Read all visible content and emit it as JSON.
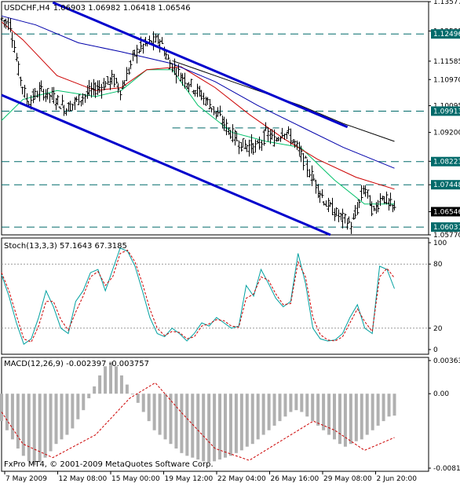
{
  "colors": {
    "background": "#ffffff",
    "frame": "#000000",
    "candle": "#000000",
    "channel": "#0000cc",
    "level": "#006a6a",
    "ma_fast": "#00c06a",
    "ma_mid": "#cc0000",
    "ma_slow1": "#0000aa",
    "ma_slow2": "#000000",
    "stoch_main": "#00a0a0",
    "stoch_signal": "#cc0000",
    "macd_hist": "#b0b0b0",
    "macd_signal": "#cc0000",
    "price_box_bg": "#000000",
    "price_box_text": "#ffffff"
  },
  "header": {
    "symbol": "USDCHF,H4",
    "ohlc": "1.06903 1.06982 1.06418 1.06546"
  },
  "stoch": {
    "label": "Stoch(13,3,3) 57.1643 67.3185"
  },
  "macd": {
    "label": "MACD(12,26,9) -0.002397 -0.003757"
  },
  "copyright": "FxPro MT4, © 2001-2009 MetaQuotes Software Corp.",
  "chart_data": [
    {
      "type": "candlestick",
      "title": "USDCHF,H4",
      "ylim": [
        1.0577,
        1.1358
      ],
      "yticks": [
        "1.13577",
        "1.12595",
        "1.11585",
        "1.10970",
        "1.10095",
        "1.09200",
        "1.08233",
        "1.07448",
        "1.06546",
        "1.05770"
      ],
      "levels": [
        1.12496,
        1.09913,
        1.08223,
        1.07448,
        1.06031
      ],
      "level_labels": [
        "1.12496",
        "1.09913",
        "1.08223",
        "1.07448",
        "1.06031"
      ],
      "current_price": "1.06546",
      "short_level": {
        "price": 1.0935,
        "from": 0.4,
        "to": 0.65
      },
      "channel_upper": [
        [
          0.12,
          1.1355
        ],
        [
          0.81,
          1.0938
        ]
      ],
      "channel_lower": [
        [
          0.0,
          1.1045
        ],
        [
          0.77,
          1.0577
        ]
      ],
      "keypoints": [
        [
          0,
          1.13
        ],
        [
          0.02,
          1.128
        ],
        [
          0.04,
          1.112
        ],
        [
          0.06,
          1.102
        ],
        [
          0.09,
          1.106
        ],
        [
          0.12,
          1.104
        ],
        [
          0.15,
          1.1
        ],
        [
          0.18,
          1.103
        ],
        [
          0.21,
          1.106
        ],
        [
          0.24,
          1.108
        ],
        [
          0.26,
          1.11
        ],
        [
          0.28,
          1.106
        ],
        [
          0.31,
          1.118
        ],
        [
          0.33,
          1.121
        ],
        [
          0.37,
          1.123
        ],
        [
          0.39,
          1.116
        ],
        [
          0.42,
          1.111
        ],
        [
          0.45,
          1.107
        ],
        [
          0.49,
          1.101
        ],
        [
          0.53,
          1.093
        ],
        [
          0.56,
          1.088
        ],
        [
          0.6,
          1.087
        ],
        [
          0.62,
          1.092
        ],
        [
          0.64,
          1.089
        ],
        [
          0.66,
          1.093
        ],
        [
          0.68,
          1.09
        ],
        [
          0.72,
          1.079
        ],
        [
          0.76,
          1.068
        ],
        [
          0.79,
          1.064
        ],
        [
          0.82,
          1.061
        ],
        [
          0.85,
          1.074
        ],
        [
          0.87,
          1.065
        ],
        [
          0.89,
          1.071
        ],
        [
          0.92,
          1.066
        ]
      ],
      "moving_averages": [
        {
          "color": "ma_fast",
          "points": [
            [
              0.0,
              1.096
            ],
            [
              0.05,
              1.103
            ],
            [
              0.13,
              1.106
            ],
            [
              0.22,
              1.104
            ],
            [
              0.28,
              1.106
            ],
            [
              0.34,
              1.113
            ],
            [
              0.4,
              1.113
            ],
            [
              0.46,
              1.101
            ],
            [
              0.54,
              1.092
            ],
            [
              0.62,
              1.089
            ],
            [
              0.7,
              1.087
            ],
            [
              0.78,
              1.076
            ],
            [
              0.85,
              1.068
            ],
            [
              0.92,
              1.068
            ]
          ]
        },
        {
          "color": "ma_mid",
          "points": [
            [
              0.0,
              1.129
            ],
            [
              0.05,
              1.123
            ],
            [
              0.13,
              1.111
            ],
            [
              0.22,
              1.106
            ],
            [
              0.28,
              1.107
            ],
            [
              0.34,
              1.113
            ],
            [
              0.42,
              1.114
            ],
            [
              0.5,
              1.107
            ],
            [
              0.58,
              1.098
            ],
            [
              0.66,
              1.09
            ],
            [
              0.74,
              1.083
            ],
            [
              0.83,
              1.077
            ],
            [
              0.92,
              1.073
            ]
          ]
        },
        {
          "color": "ma_slow1",
          "points": [
            [
              0.0,
              1.131
            ],
            [
              0.08,
              1.128
            ],
            [
              0.18,
              1.122
            ],
            [
              0.28,
              1.119
            ],
            [
              0.4,
              1.115
            ],
            [
              0.5,
              1.109
            ],
            [
              0.6,
              1.101
            ],
            [
              0.7,
              1.094
            ],
            [
              0.8,
              1.087
            ],
            [
              0.92,
              1.08
            ]
          ]
        },
        {
          "color": "ma_slow2",
          "points": [
            [
              0.4,
              1.116
            ],
            [
              0.5,
              1.111
            ],
            [
              0.6,
              1.106
            ],
            [
              0.7,
              1.101
            ],
            [
              0.8,
              1.095
            ],
            [
              0.92,
              1.089
            ]
          ]
        }
      ]
    },
    {
      "type": "line",
      "title": "Stoch(13,3,3) 57.1643 67.3185",
      "ylim": [
        0,
        100
      ],
      "yticks": [
        "100",
        "80",
        "20",
        "0"
      ],
      "levels": [
        80,
        20
      ],
      "series": [
        {
          "color": "stoch_main",
          "values": [
            70,
            50,
            25,
            5,
            10,
            30,
            55,
            40,
            20,
            15,
            45,
            55,
            72,
            75,
            55,
            75,
            95,
            92,
            78,
            55,
            30,
            15,
            12,
            20,
            15,
            8,
            15,
            25,
            22,
            30,
            25,
            20,
            22,
            60,
            50,
            75,
            62,
            48,
            40,
            45,
            90,
            62,
            20,
            10,
            8,
            9,
            15,
            30,
            42,
            20,
            15,
            78,
            75,
            57
          ]
        },
        {
          "color": "stoch_signal",
          "values": [
            72,
            55,
            32,
            10,
            7,
            22,
            45,
            45,
            28,
            18,
            35,
            50,
            68,
            73,
            60,
            68,
            90,
            93,
            82,
            62,
            38,
            20,
            13,
            17,
            16,
            10,
            12,
            22,
            24,
            28,
            27,
            22,
            21,
            48,
            52,
            68,
            65,
            52,
            42,
            43,
            82,
            68,
            30,
            14,
            9,
            8,
            12,
            25,
            38,
            26,
            17,
            68,
            76,
            67
          ]
        }
      ]
    },
    {
      "type": "bar",
      "title": "MACD(12,26,9) -0.002397 -0.003757",
      "ylim": [
        -0.00815,
        0.00363
      ],
      "yticks": [
        "0.00363",
        "0.00",
        "-0.00815"
      ],
      "histogram": [
        -0.003,
        -0.004,
        -0.005,
        -0.006,
        -0.0068,
        -0.0074,
        -0.0078,
        -0.0075,
        -0.007,
        -0.0063,
        -0.0055,
        -0.005,
        -0.0045,
        -0.0038,
        -0.0028,
        -0.0018,
        -0.0005,
        0.0008,
        0.002,
        0.003,
        0.0035,
        0.003,
        0.002,
        0.001,
        0.0,
        -0.001,
        -0.002,
        -0.003,
        -0.004,
        -0.0045,
        -0.005,
        -0.0055,
        -0.006,
        -0.0065,
        -0.0068,
        -0.007,
        -0.0072,
        -0.0074,
        -0.0075,
        -0.0074,
        -0.0072,
        -0.007,
        -0.0068,
        -0.0065,
        -0.0062,
        -0.0058,
        -0.0055,
        -0.005,
        -0.0045,
        -0.004,
        -0.0035,
        -0.003,
        -0.0025,
        -0.002,
        -0.0018,
        -0.002,
        -0.0025,
        -0.003,
        -0.0035,
        -0.004,
        -0.0045,
        -0.005,
        -0.0055,
        -0.0058,
        -0.0055,
        -0.0052,
        -0.005,
        -0.0045,
        -0.004,
        -0.0035,
        -0.003,
        -0.0025,
        -0.0024
      ],
      "signal": [
        [
          0.0,
          -0.002
        ],
        [
          0.05,
          -0.0055
        ],
        [
          0.12,
          -0.007
        ],
        [
          0.22,
          -0.0045
        ],
        [
          0.3,
          -0.0005
        ],
        [
          0.36,
          0.0012
        ],
        [
          0.42,
          -0.002
        ],
        [
          0.5,
          -0.006
        ],
        [
          0.58,
          -0.0073
        ],
        [
          0.66,
          -0.005
        ],
        [
          0.73,
          -0.003
        ],
        [
          0.78,
          -0.004
        ],
        [
          0.85,
          -0.0062
        ],
        [
          0.92,
          -0.0048
        ]
      ]
    }
  ],
  "x_axis": {
    "labels": [
      "7 May 2009",
      "12 May 08:00",
      "15 May 00:00",
      "19 May 12:00",
      "22 May 04:00",
      "26 May 16:00",
      "29 May 08:00",
      "2 Jun 20:00"
    ]
  }
}
